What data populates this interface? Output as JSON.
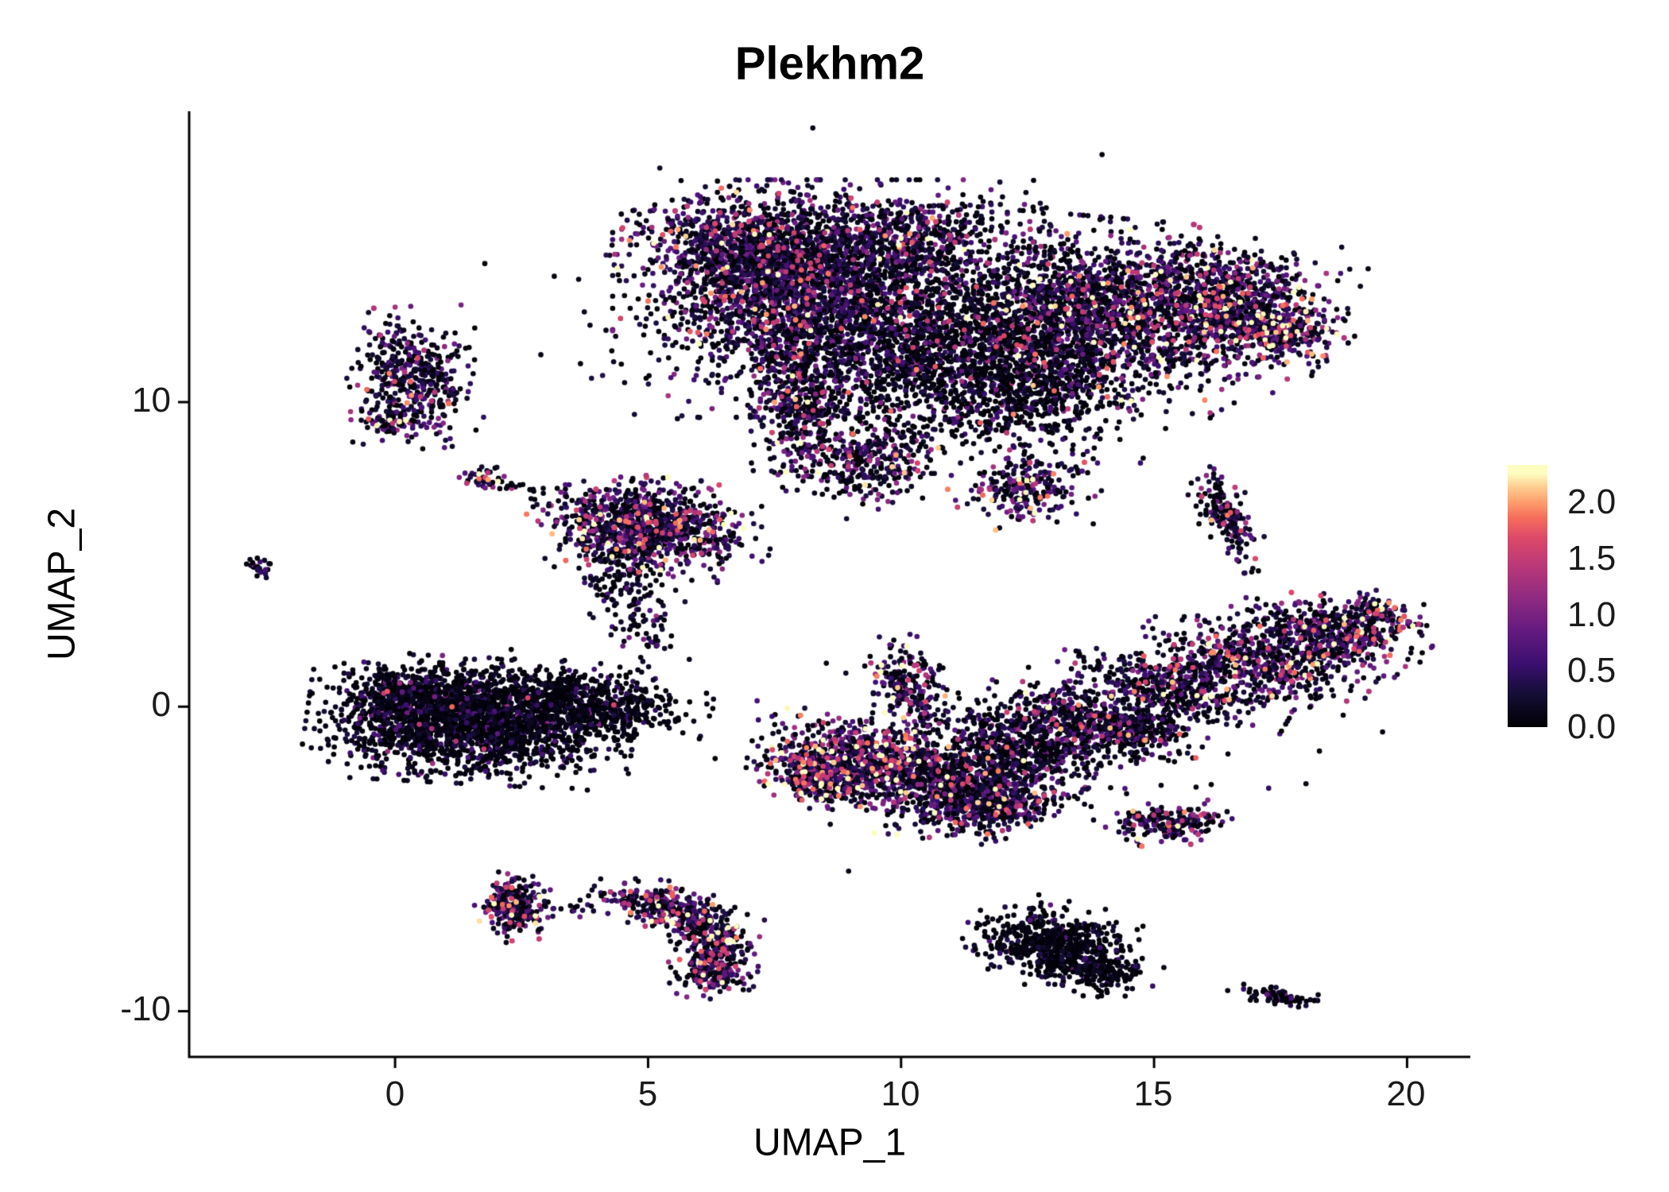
{
  "chart_data": {
    "type": "scatter",
    "title": "Plekhm2",
    "xlabel": "UMAP_1",
    "ylabel": "UMAP_2",
    "xlim": [
      -4.07,
      21.25
    ],
    "ylim": [
      -11.5,
      19.55
    ],
    "xticks": [
      0,
      5,
      10,
      15,
      20
    ],
    "yticks": [
      10,
      0,
      -10
    ],
    "grid": false,
    "legend_position": "right",
    "colorbar": {
      "ticks": [
        "2.0",
        "1.5",
        "1.0",
        "0.5",
        "0.0"
      ],
      "vmin": 0.0,
      "vmax": 2.25,
      "bar_vmax": 2.33
    },
    "colormap": {
      "name": "magma",
      "stops": [
        [
          0.0,
          "#000004"
        ],
        [
          0.13,
          "#140e36"
        ],
        [
          0.25,
          "#3b0f70"
        ],
        [
          0.38,
          "#641a80"
        ],
        [
          0.5,
          "#8c2981"
        ],
        [
          0.63,
          "#b73779"
        ],
        [
          0.75,
          "#de4968"
        ],
        [
          0.83,
          "#f7705c"
        ],
        [
          0.89,
          "#fe9f6d"
        ],
        [
          0.95,
          "#fece91"
        ],
        [
          1.0,
          "#fcfdbf"
        ]
      ]
    },
    "point_radius": 3.3,
    "seed": 42,
    "clusters": [
      {
        "n": 2400,
        "x": 8.2,
        "y": 13.4,
        "sx": 1.5,
        "sy": 1.5,
        "r": 0,
        "p0": 0.3,
        "m": 0.55
      },
      {
        "n": 800,
        "x": 7.0,
        "y": 15.0,
        "sx": 1.0,
        "sy": 0.8,
        "r": -20,
        "p0": 0.25,
        "m": 0.6
      },
      {
        "n": 600,
        "x": 9.8,
        "y": 15.3,
        "sx": 1.2,
        "sy": 0.7,
        "r": 10,
        "p0": 0.3,
        "m": 0.55
      },
      {
        "n": 900,
        "x": 10.6,
        "y": 11.3,
        "sx": 1.3,
        "sy": 1.4,
        "r": 0,
        "p0": 0.55,
        "m": 0.4
      },
      {
        "n": 350,
        "x": 8.0,
        "y": 9.6,
        "sx": 0.45,
        "sy": 1.0,
        "r": 8,
        "p0": 0.3,
        "m": 0.6
      },
      {
        "n": 300,
        "x": 9.3,
        "y": 8.0,
        "sx": 0.7,
        "sy": 0.6,
        "r": 30,
        "p0": 0.35,
        "m": 0.7
      },
      {
        "n": 2000,
        "x": 14.2,
        "y": 12.9,
        "sx": 1.6,
        "sy": 1.2,
        "r": -8,
        "p0": 0.3,
        "m": 0.65
      },
      {
        "n": 500,
        "x": 16.6,
        "y": 13.6,
        "sx": 0.9,
        "sy": 0.7,
        "r": -15,
        "p0": 0.3,
        "m": 0.7
      },
      {
        "n": 350,
        "x": 17.3,
        "y": 12.4,
        "sx": 0.6,
        "sy": 0.45,
        "r": -30,
        "p0": 0.2,
        "m": 0.9
      },
      {
        "n": 700,
        "x": 12.7,
        "y": 10.6,
        "sx": 1.0,
        "sy": 1.0,
        "r": 0,
        "p0": 0.5,
        "m": 0.45
      },
      {
        "n": 400,
        "x": 11.2,
        "y": 12.3,
        "sx": 1.1,
        "sy": 1.6,
        "r": 0,
        "p0": 0.75,
        "m": 0.25
      },
      {
        "n": 240,
        "x": 12.4,
        "y": 7.2,
        "sx": 0.55,
        "sy": 0.5,
        "r": 20,
        "p0": 0.25,
        "m": 0.8
      },
      {
        "n": 170,
        "x": 16.4,
        "y": 6.3,
        "sx": 0.22,
        "sy": 0.75,
        "r": 15,
        "p0": 0.45,
        "m": 0.6
      },
      {
        "n": 430,
        "x": 0.35,
        "y": 10.8,
        "sx": 0.5,
        "sy": 0.9,
        "r": 5,
        "p0": 0.4,
        "m": 0.5
      },
      {
        "n": 60,
        "x": -0.1,
        "y": 9.3,
        "sx": 0.3,
        "sy": 0.25,
        "r": 0,
        "p0": 0.3,
        "m": 0.8
      },
      {
        "n": 26,
        "x": -2.65,
        "y": 4.65,
        "sx": 0.13,
        "sy": 0.16,
        "r": 0,
        "p0": 0.4,
        "m": 0.5
      },
      {
        "n": 40,
        "x": 1.75,
        "y": 7.5,
        "sx": 0.22,
        "sy": 0.16,
        "r": -15,
        "p0": 0.2,
        "m": 1.0
      },
      {
        "n": 18,
        "x": 2.5,
        "y": 7.2,
        "sx": 0.5,
        "sy": 0.12,
        "r": -8,
        "p0": 0.6,
        "m": 0.3
      },
      {
        "n": 900,
        "x": 4.9,
        "y": 5.9,
        "sx": 0.9,
        "sy": 0.65,
        "r": -10,
        "p0": 0.25,
        "m": 0.7
      },
      {
        "n": 150,
        "x": 4.55,
        "y": 4.3,
        "sx": 0.4,
        "sy": 0.7,
        "r": 0,
        "p0": 0.5,
        "m": 0.4
      },
      {
        "n": 50,
        "x": 4.95,
        "y": 2.6,
        "sx": 0.3,
        "sy": 0.5,
        "r": 0,
        "p0": 0.5,
        "m": 0.4
      },
      {
        "n": 60,
        "x": 6.3,
        "y": 5.4,
        "sx": 0.5,
        "sy": 0.4,
        "r": 0,
        "p0": 0.4,
        "m": 0.5
      },
      {
        "n": 2300,
        "x": 1.5,
        "y": -0.45,
        "sx": 1.25,
        "sy": 0.8,
        "r": -5,
        "p0": 0.62,
        "m": 0.32
      },
      {
        "n": 550,
        "x": 3.9,
        "y": 0.1,
        "sx": 0.9,
        "sy": 0.5,
        "r": -15,
        "p0": 0.7,
        "m": 0.25
      },
      {
        "n": 250,
        "x": 0.2,
        "y": 0.4,
        "sx": 0.5,
        "sy": 0.4,
        "r": 0,
        "p0": 0.5,
        "m": 0.4
      },
      {
        "n": 650,
        "x": 9.2,
        "y": -1.7,
        "sx": 0.85,
        "sy": 0.6,
        "r": -10,
        "p0": 0.18,
        "m": 0.85
      },
      {
        "n": 250,
        "x": 8.4,
        "y": -2.3,
        "sx": 0.45,
        "sy": 0.4,
        "r": 0,
        "p0": 0.15,
        "m": 1.0
      },
      {
        "n": 750,
        "x": 11.0,
        "y": -2.5,
        "sx": 1.0,
        "sy": 0.65,
        "r": 10,
        "p0": 0.35,
        "m": 0.6
      },
      {
        "n": 300,
        "x": 11.9,
        "y": -3.3,
        "sx": 0.6,
        "sy": 0.4,
        "r": 20,
        "p0": 0.35,
        "m": 0.6
      },
      {
        "n": 550,
        "x": 12.4,
        "y": -1.2,
        "sx": 0.9,
        "sy": 0.6,
        "r": -15,
        "p0": 0.4,
        "m": 0.5
      },
      {
        "n": 450,
        "x": 13.8,
        "y": -0.4,
        "sx": 0.9,
        "sy": 0.5,
        "r": -20,
        "p0": 0.35,
        "m": 0.6
      },
      {
        "n": 200,
        "x": 10.15,
        "y": 0.7,
        "sx": 0.35,
        "sy": 0.7,
        "r": 10,
        "p0": 0.3,
        "m": 0.8
      },
      {
        "n": 480,
        "x": 15.4,
        "y": 0.6,
        "sx": 0.95,
        "sy": 0.5,
        "r": -20,
        "p0": 0.35,
        "m": 0.65
      },
      {
        "n": 520,
        "x": 17.0,
        "y": 1.5,
        "sx": 0.95,
        "sy": 0.5,
        "r": -22,
        "p0": 0.3,
        "m": 0.7
      },
      {
        "n": 430,
        "x": 18.4,
        "y": 2.4,
        "sx": 0.8,
        "sy": 0.45,
        "r": -25,
        "p0": 0.3,
        "m": 0.7
      },
      {
        "n": 140,
        "x": 19.4,
        "y": 3.0,
        "sx": 0.4,
        "sy": 0.3,
        "r": -25,
        "p0": 0.25,
        "m": 0.8
      },
      {
        "n": 160,
        "x": 14.6,
        "y": -0.9,
        "sx": 0.5,
        "sy": 0.35,
        "r": 0,
        "p0": 0.5,
        "m": 0.4
      },
      {
        "n": 200,
        "x": 15.3,
        "y": -3.8,
        "sx": 0.55,
        "sy": 0.3,
        "r": 10,
        "p0": 0.3,
        "m": 0.7
      },
      {
        "n": 270,
        "x": 2.35,
        "y": -6.6,
        "sx": 0.3,
        "sy": 0.45,
        "r": 0,
        "p0": 0.25,
        "m": 0.75
      },
      {
        "n": 25,
        "x": 3.6,
        "y": -6.6,
        "sx": 0.55,
        "sy": 0.15,
        "r": 0,
        "p0": 0.5,
        "m": 0.5
      },
      {
        "n": 160,
        "x": 5.0,
        "y": -6.4,
        "sx": 0.45,
        "sy": 0.3,
        "r": -20,
        "p0": 0.25,
        "m": 0.8
      },
      {
        "n": 180,
        "x": 5.85,
        "y": -7.0,
        "sx": 0.4,
        "sy": 0.35,
        "r": -35,
        "p0": 0.3,
        "m": 0.7
      },
      {
        "n": 200,
        "x": 6.35,
        "y": -7.9,
        "sx": 0.3,
        "sy": 0.5,
        "r": -10,
        "p0": 0.3,
        "m": 0.7
      },
      {
        "n": 130,
        "x": 6.3,
        "y": -8.8,
        "sx": 0.35,
        "sy": 0.3,
        "r": 10,
        "p0": 0.25,
        "m": 0.8
      },
      {
        "n": 600,
        "x": 13.0,
        "y": -7.8,
        "sx": 0.7,
        "sy": 0.55,
        "r": -20,
        "p0": 0.72,
        "m": 0.25
      },
      {
        "n": 180,
        "x": 13.9,
        "y": -8.7,
        "sx": 0.45,
        "sy": 0.3,
        "r": -20,
        "p0": 0.7,
        "m": 0.25
      },
      {
        "n": 75,
        "x": 17.4,
        "y": -9.5,
        "sx": 0.4,
        "sy": 0.13,
        "r": -12,
        "p0": 0.6,
        "m": 0.35
      },
      {
        "n": 120,
        "x": 9.5,
        "y": 12.5,
        "sx": 3.5,
        "sy": 2.5,
        "r": 0,
        "p0": 0.7,
        "m": 0.3
      },
      {
        "n": 80,
        "x": 12.5,
        "y": -1.5,
        "sx": 3.0,
        "sy": 1.5,
        "r": 0,
        "p0": 0.75,
        "m": 0.25
      }
    ],
    "highlights": [
      {
        "x": 9.6,
        "y": 1.15,
        "v": 2.25
      },
      {
        "x": 9.52,
        "y": 1.0,
        "v": 1.9
      },
      {
        "x": 7.45,
        "y": 9.0,
        "v": 1.6
      },
      {
        "x": 8.35,
        "y": -2.25,
        "v": 1.8
      },
      {
        "x": 1.78,
        "y": 7.52,
        "v": 1.7
      },
      {
        "x": -0.05,
        "y": 9.3,
        "v": 1.45
      },
      {
        "x": 19.4,
        "y": 3.05,
        "v": 1.6
      },
      {
        "x": 6.4,
        "y": -8.6,
        "v": 1.7
      },
      {
        "x": 2.3,
        "y": -6.3,
        "v": 1.6
      },
      {
        "x": 16.6,
        "y": 7.2,
        "v": 1.5
      }
    ]
  }
}
